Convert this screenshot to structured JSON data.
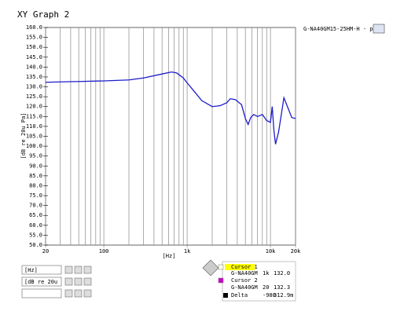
{
  "chart_data": {
    "type": "line",
    "title": "XY Graph 2",
    "xlabel": "[Hz]",
    "ylabel": "[dB re 20u Pa]",
    "xscale": "log",
    "xlim": [
      20,
      20000
    ],
    "ylim": [
      50,
      160
    ],
    "xticks": [
      20,
      100,
      {
        "value": 1000,
        "label": "1k"
      },
      {
        "value": 10000,
        "label": "10k"
      },
      {
        "value": 20000,
        "label": "20k"
      }
    ],
    "xgrid_minor": [
      30,
      40,
      50,
      60,
      70,
      80,
      90,
      200,
      300,
      400,
      500,
      600,
      700,
      800,
      900,
      2000,
      3000,
      4000,
      5000,
      6000,
      7000,
      8000,
      9000
    ],
    "yticks": [
      {
        "value": 50,
        "label": "50.0"
      },
      {
        "value": 55,
        "label": "55.0"
      },
      {
        "value": 60,
        "label": "60.0"
      },
      {
        "value": 65,
        "label": "65.0"
      },
      {
        "value": 70,
        "label": "70.0"
      },
      {
        "value": 75,
        "label": "75.0"
      },
      {
        "value": 80,
        "label": "80.0"
      },
      {
        "value": 85,
        "label": "85.0"
      },
      {
        "value": 90,
        "label": "90.0"
      },
      {
        "value": 95,
        "label": "95.0"
      },
      {
        "value": 100,
        "label": "100.0"
      },
      {
        "value": 105,
        "label": "105.0"
      },
      {
        "value": 110,
        "label": "110.0"
      },
      {
        "value": 115,
        "label": "115.0"
      },
      {
        "value": 120,
        "label": "120.0"
      },
      {
        "value": 125,
        "label": "125.0"
      },
      {
        "value": 130,
        "label": "130.0"
      },
      {
        "value": 135,
        "label": "135.0"
      },
      {
        "value": 140,
        "label": "140.0"
      },
      {
        "value": 145,
        "label": "145.0"
      },
      {
        "value": 150,
        "label": "150.0"
      },
      {
        "value": 155,
        "label": "155.0"
      },
      {
        "value": 160,
        "label": "160.0"
      }
    ],
    "x": [
      20,
      30,
      50,
      100,
      200,
      300,
      500,
      650,
      750,
      900,
      1000,
      1200,
      1500,
      2000,
      2500,
      3000,
      3300,
      3800,
      4500,
      5000,
      5400,
      5800,
      6300,
      7000,
      8000,
      9000,
      10000,
      10500,
      11000,
      11500,
      12500,
      13500,
      14500,
      16000,
      18000,
      20000
    ],
    "series": [
      {
        "name": "G-NA40GM15-25HM-H - p",
        "color": "#1c1ccc",
        "values": [
          132.3,
          132.5,
          132.7,
          133,
          133.5,
          134.5,
          136.5,
          137.5,
          137,
          134.5,
          132,
          128,
          123,
          120,
          120.5,
          122,
          124,
          123.5,
          121,
          114,
          111,
          114.5,
          116,
          115,
          116,
          113,
          112,
          120,
          108,
          101,
          107,
          116,
          124.5,
          120,
          114.5,
          114
        ]
      }
    ]
  },
  "input_boxes": [
    "[Hz]",
    "[dB re 20u",
    ""
  ],
  "cursor_panel": {
    "rows": [
      {
        "name": "Cursor 1",
        "plot": "G-NA40GM",
        "x": "1k",
        "y": "132.0"
      },
      {
        "name": "Cursor 2",
        "plot": "G-NA40GM",
        "x": "20",
        "y": "132.3"
      }
    ],
    "delta": {
      "name": "Delta",
      "x": "-980",
      "y": "312.9m"
    }
  }
}
